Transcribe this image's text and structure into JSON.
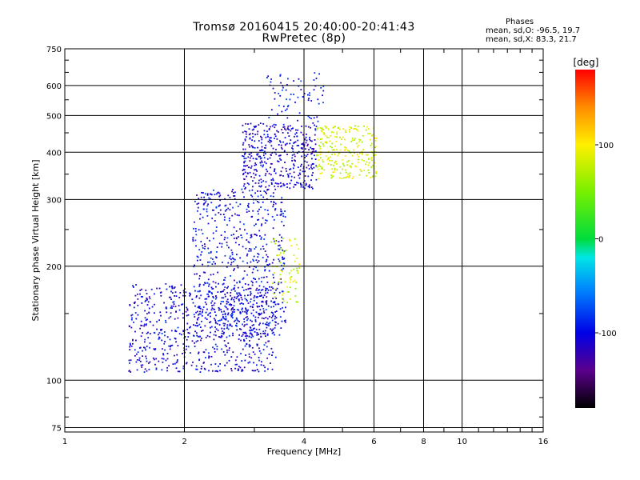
{
  "header": {
    "title_line1": "Tromsø 20160415 20:40:00-20:41:43",
    "title_line2": "RwPretec (8p)",
    "phases_heading": "Phases",
    "phases_o": "mean, sd,O: -96.5, 19.7",
    "phases_x": "mean, sd,X:  83.3, 21.7"
  },
  "chart_data": {
    "type": "scatter",
    "xlabel": "Frequency [MHz]",
    "ylabel": "Stationary phase Virtual Height [km]",
    "xscale": "log",
    "yscale": "log",
    "xlim": [
      1,
      16
    ],
    "ylim": [
      73,
      750
    ],
    "x_ticks": [
      1,
      2,
      4,
      6,
      8,
      10,
      16
    ],
    "x_tick_labels": [
      "1",
      "2",
      "4",
      "6",
      "8",
      "10",
      "16"
    ],
    "y_ticks": [
      75,
      100,
      200,
      300,
      400,
      500,
      600,
      750
    ],
    "y_tick_labels": [
      "75",
      "100",
      "200",
      "300",
      "400",
      "500",
      "600",
      "750"
    ],
    "grid": true,
    "colorbar": {
      "label": "[deg]",
      "range": [
        -180,
        180
      ],
      "ticks": [
        -100,
        0,
        100
      ],
      "tick_labels": [
        "-100",
        "0",
        "100"
      ],
      "colormap": "rainbow"
    },
    "point_groups": [
      {
        "name": "low-band O-mode cloud",
        "x_range": [
          1.45,
          3.4
        ],
        "y_range": [
          105,
          180
        ],
        "phase": -105,
        "count": 700
      },
      {
        "name": "mid-band O-mode cloud",
        "x_range": [
          2.1,
          3.6
        ],
        "y_range": [
          130,
          320
        ],
        "phase": -100,
        "count": 650
      },
      {
        "name": "F-region O-mode cloud",
        "x_range": [
          2.8,
          4.3
        ],
        "y_range": [
          320,
          480
        ],
        "phase": -110,
        "count": 420
      },
      {
        "name": "F-region X-mode cloud",
        "x_range": [
          4.3,
          6.1
        ],
        "y_range": [
          340,
          470
        ],
        "phase": 85,
        "count": 260
      },
      {
        "name": "X-mode cusp",
        "x_range": [
          3.3,
          3.9
        ],
        "y_range": [
          160,
          240
        ],
        "phase": 80,
        "count": 70
      },
      {
        "name": "upper echoes",
        "x_range": [
          3.2,
          4.5
        ],
        "y_range": [
          480,
          650
        ],
        "phase": -95,
        "count": 70
      }
    ]
  }
}
